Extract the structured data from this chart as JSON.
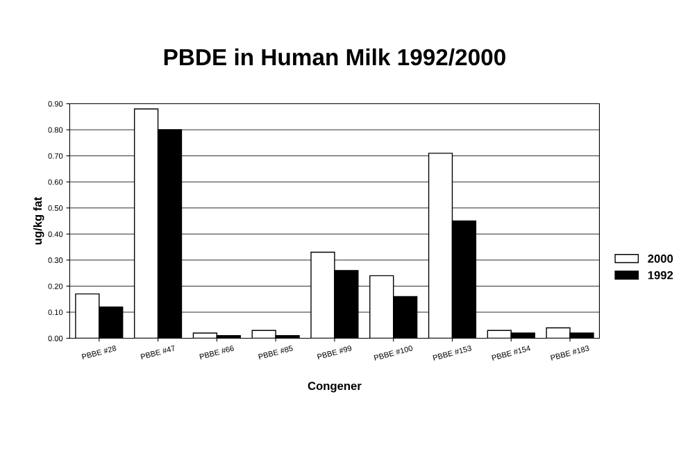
{
  "chart_data": {
    "type": "bar",
    "title": "PBDE in Human Milk 1992/2000",
    "xlabel": "Congener",
    "ylabel": "ug/kg fat",
    "categories": [
      "PBBE #28",
      "PBBE #47",
      "PBBE #66",
      "PBBE #85",
      "PBBE #99",
      "PBBE #100",
      "PBBE #153",
      "PBBE #154",
      "PBBE #183"
    ],
    "series": [
      {
        "name": "2000",
        "color": "#ffffff",
        "values": [
          0.17,
          0.88,
          0.02,
          0.03,
          0.33,
          0.24,
          0.71,
          0.03,
          0.04
        ]
      },
      {
        "name": "1992",
        "color": "#000000",
        "values": [
          0.12,
          0.8,
          0.01,
          0.01,
          0.26,
          0.16,
          0.45,
          0.02,
          0.02
        ]
      }
    ],
    "ylim": [
      0,
      0.9
    ],
    "yticks": [
      {
        "value": 0,
        "label": "0.00"
      },
      {
        "value": 0.1,
        "label": "0.10"
      },
      {
        "value": 0.2,
        "label": "0.20"
      },
      {
        "value": 0.3,
        "label": "0.30"
      },
      {
        "value": 0.4,
        "label": "0.40"
      },
      {
        "value": 0.5,
        "label": "0.50"
      },
      {
        "value": 0.6,
        "label": "0.60"
      },
      {
        "value": 0.7,
        "label": "0.70"
      },
      {
        "value": 0.8,
        "label": "0.80"
      },
      {
        "value": 0.9,
        "label": "0.90"
      }
    ],
    "grid": "y",
    "legend": "right"
  }
}
